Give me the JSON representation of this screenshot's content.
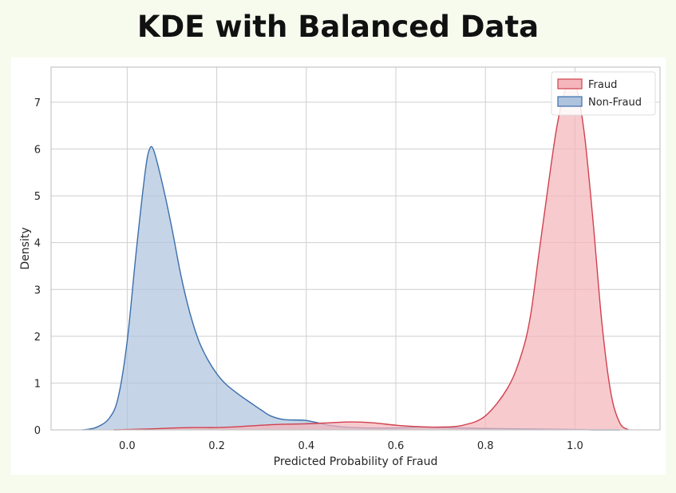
{
  "page": {
    "title": "KDE with Balanced Data"
  },
  "colors": {
    "fraud_line": "#d0414e",
    "fraud_fill": "#f4b6bb",
    "nonfraud_line": "#3b6eab",
    "nonfraud_fill": "#aec3de",
    "grid": "#cfcfcf",
    "frame": "#c6c6c6"
  },
  "chart_data": {
    "type": "area",
    "title": "",
    "xlabel": "Predicted Probability of Fraud",
    "ylabel": "Density",
    "xlim": [
      -0.17,
      1.19
    ],
    "ylim": [
      0,
      7.75
    ],
    "xticks": [
      0.0,
      0.2,
      0.4,
      0.6,
      0.8,
      1.0
    ],
    "xtick_labels": [
      "0.0",
      "0.2",
      "0.4",
      "0.6",
      "0.8",
      "1.0"
    ],
    "yticks": [
      0,
      1,
      2,
      3,
      4,
      5,
      6,
      7
    ],
    "ytick_labels": [
      "0",
      "1",
      "2",
      "3",
      "4",
      "5",
      "6",
      "7"
    ],
    "grid": true,
    "legend_position": "top-right",
    "series": [
      {
        "name": "Fraud",
        "color_key": "fraud",
        "x": [
          -0.03,
          0.05,
          0.1,
          0.15,
          0.2,
          0.25,
          0.3,
          0.35,
          0.4,
          0.45,
          0.5,
          0.55,
          0.6,
          0.65,
          0.7,
          0.75,
          0.8,
          0.85,
          0.88,
          0.9,
          0.92,
          0.94,
          0.96,
          0.98,
          1.0,
          1.02,
          1.04,
          1.06,
          1.08,
          1.1,
          1.12
        ],
        "y": [
          0.0,
          0.02,
          0.04,
          0.05,
          0.05,
          0.07,
          0.1,
          0.12,
          0.13,
          0.15,
          0.17,
          0.15,
          0.1,
          0.07,
          0.06,
          0.1,
          0.3,
          0.9,
          1.6,
          2.4,
          3.8,
          5.2,
          6.5,
          7.3,
          7.4,
          6.4,
          4.5,
          2.3,
          0.8,
          0.15,
          0.0
        ]
      },
      {
        "name": "Non-Fraud",
        "color_key": "nonfraud",
        "x": [
          -0.1,
          -0.07,
          -0.04,
          -0.02,
          0.0,
          0.02,
          0.04,
          0.05,
          0.06,
          0.08,
          0.1,
          0.12,
          0.14,
          0.16,
          0.18,
          0.2,
          0.22,
          0.25,
          0.28,
          0.3,
          0.32,
          0.35,
          0.4,
          0.45,
          0.5,
          0.6,
          0.65,
          0.7,
          0.8,
          0.9,
          1.0,
          1.05,
          1.1
        ],
        "y": [
          0.0,
          0.05,
          0.25,
          0.7,
          1.9,
          3.8,
          5.5,
          6.0,
          5.95,
          5.2,
          4.3,
          3.3,
          2.5,
          1.9,
          1.5,
          1.2,
          0.98,
          0.75,
          0.55,
          0.42,
          0.3,
          0.22,
          0.2,
          0.1,
          0.05,
          0.04,
          0.06,
          0.05,
          0.03,
          0.02,
          0.01,
          0.0,
          0.0
        ]
      }
    ]
  }
}
